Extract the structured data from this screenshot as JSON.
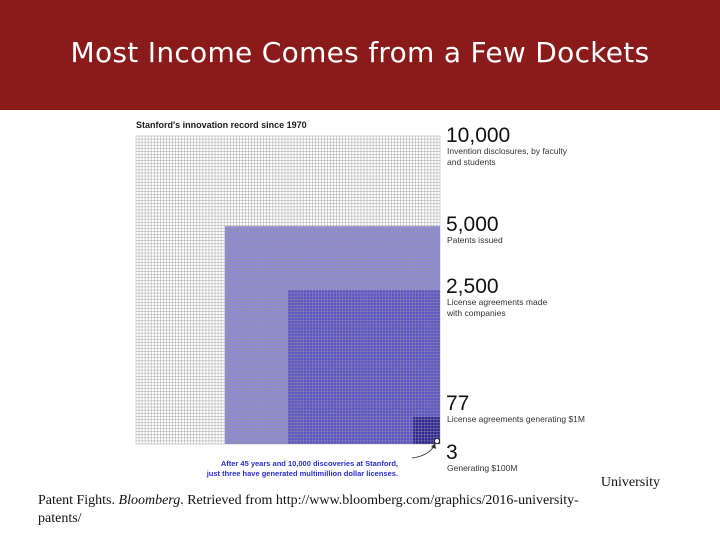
{
  "slide": {
    "title": "Most Income Comes from a Few Dockets"
  },
  "citation": {
    "line1": "University",
    "line2_pre": "Patent Fights. ",
    "line2_italic": "Bloomberg",
    "line2_post": ". Retrieved from http://www.bloomberg.com/graphics/2016-university-",
    "line3": "patents/"
  },
  "colors": {
    "title_bar": "#8b1a1a",
    "grid_line": "#9a9a9a",
    "patents_fill": "#8c87d9",
    "licenses_fill": "#5a53cc",
    "million_fill": "#2a2396",
    "hundred_million_fill": "#14107a"
  },
  "chart_data": {
    "type": "nested-area",
    "title": "Stanford's innovation record since 1970",
    "levels": [
      {
        "value": 10000,
        "value_label": "10,000",
        "label_lines": [
          "Invention disclosures, by faculty",
          "and students"
        ]
      },
      {
        "value": 5000,
        "value_label": "5,000",
        "label_lines": [
          "Patents issued"
        ]
      },
      {
        "value": 2500,
        "value_label": "2,500",
        "label_lines": [
          "License agreements made",
          "with companies"
        ]
      },
      {
        "value": 77,
        "value_label": "77",
        "label_lines": [
          "License agreements generating $1M"
        ]
      },
      {
        "value": 3,
        "value_label": "3",
        "label_lines": [
          "Generating $100M"
        ]
      }
    ],
    "annotation_lines": [
      "After 45 years and 10,000 discoveries at Stanford,",
      "just three have generated multimillion dollar licenses."
    ]
  }
}
